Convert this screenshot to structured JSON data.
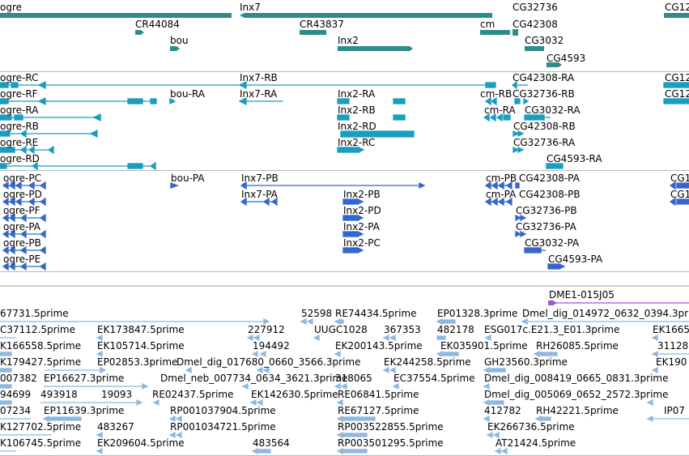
{
  "colors": {
    "gene": "#2e8b8b",
    "rnaA": "#1b9dbf",
    "rnaB": "#3566cc",
    "match": "#9b59d0",
    "est": "#8fb8e0",
    "divider": "#b8b8b8"
  },
  "gene_track": {
    "labels": [
      "ogre",
      "Inx7",
      "CG32736",
      "CG12",
      "CR44084",
      "CR43837",
      "cm",
      "CG42308",
      "bou",
      "Inx2",
      "CG3032",
      "CG4593"
    ]
  },
  "transcripts_a": {
    "labels": [
      "ogre-RC",
      "Inx7-RB",
      "CG42308-RA",
      "CG12",
      "ogre-RF",
      "bou-RA",
      "Inx7-RA",
      "Inx2-RA",
      "cm-RB",
      "CG32736-RB",
      "CG12",
      "ogre-RA",
      "Inx2-RB",
      "cm-RA",
      "CG3032-RA",
      "ogre-RB",
      "Inx2-RD",
      "CG42308-RB",
      "ogre-RE",
      "Inx2-RC",
      "CG32736-RA",
      "ogre-RD",
      "CG4593-RA"
    ]
  },
  "transcripts_b": {
    "labels": [
      "ogre-PC",
      "bou-PA",
      "Inx7-PB",
      "cm-PB",
      "CG42308-PA",
      "CG1",
      "ogre-PD",
      "Inx7-PA",
      "Inx2-PB",
      "cm-PA",
      "CG42308-PB",
      "CG1",
      "ogre-PF",
      "Inx2-PD",
      "CG32736-PB",
      "ogre-PA",
      "Inx2-PA",
      "CG32736-PA",
      "ogre-PB",
      "Inx2-PC",
      "CG3032-PA",
      "ogre-PE",
      "CG4593-PA"
    ]
  },
  "match_track": {
    "labels": [
      "DME1-015J05"
    ]
  },
  "est_track": {
    "labels": [
      "67731.5prime",
      "52598",
      "RE74434.5prime",
      "EP01328.3prime",
      "Dmel_dig_014972_0632_0394.3prime",
      "C37112.5prime",
      "EK173847.5prime",
      "227912",
      "UUGC1028",
      "367353",
      "482178",
      "ESG017c.E21.3_E01.3prime",
      "EK1665",
      "K166558.5prime",
      "EK105714.5prime",
      "194492",
      "EK200143.5prime",
      "EK035901.5prime",
      "RH26085.5prime",
      "31128",
      "K179427.5prime",
      "EP02853.3prime",
      "Dmel_dig_017680_0660_3566.3prime",
      "EK244258.5prime",
      "GH23560.3prime",
      "EK190",
      "007382",
      "EP16627.3prime",
      "Dmel_neb_007734_0634_3621.3prime",
      "318065",
      "EC37554.5prime",
      "Dmel_dig_008419_0665_0831.3prime",
      "94699",
      "493918",
      "19093",
      "RE02437.5prime",
      "EK142630.5prime",
      "RE06841.5prime",
      "Dmel_dig_005069_0652_2572.3prime",
      "07234",
      "EP11639.3prime",
      "RP001037904.5prime",
      "RE67127.5prime",
      "412782",
      "RH42221.5prime",
      "IP07",
      "K127702.5prime",
      "483267",
      "RP001034721.5prime",
      "RP003522855.5prime",
      "EK266736.5prime",
      "K106745.5prime",
      "EK209604.5prime",
      "483564",
      "RP003501295.5prime",
      "AT21424.5prime"
    ]
  }
}
